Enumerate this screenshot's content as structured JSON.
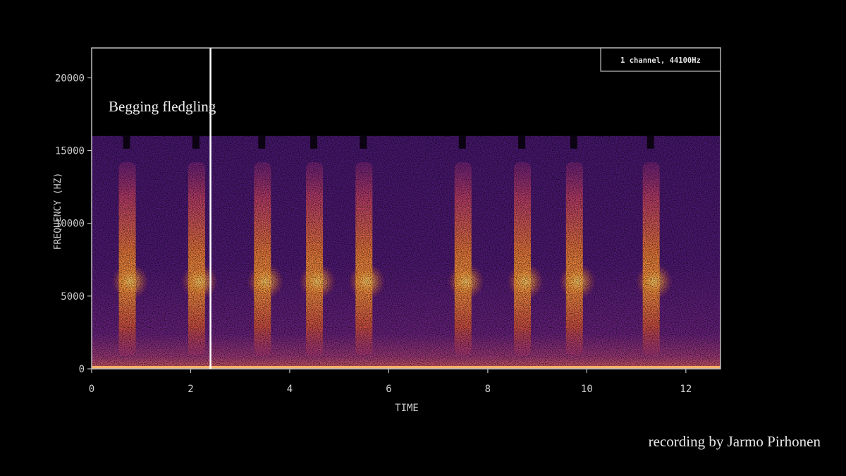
{
  "chart_data": {
    "type": "heatmap",
    "subtype": "spectrogram",
    "annotation": "Begging fledgling",
    "info_box": "1 channel, 44100Hz",
    "xlabel": "TIME",
    "ylabel": "FREQUENCY (HZ)",
    "xlim": [
      0,
      12.7
    ],
    "ylim": [
      0,
      22050
    ],
    "xticks": [
      0,
      2,
      4,
      6,
      8,
      10,
      12
    ],
    "yticks": [
      0,
      5000,
      10000,
      15000,
      20000
    ],
    "content_max_frequency": 16000,
    "cursor_time": 2.4,
    "colormap": [
      "#000000",
      "#3b0f70",
      "#8c2981",
      "#de4968",
      "#fe9f6d",
      "#fcfdbf"
    ],
    "calls": [
      {
        "time": 0.72,
        "peak_frequency": 6000
      },
      {
        "time": 2.12,
        "peak_frequency": 6000
      },
      {
        "time": 3.45,
        "peak_frequency": 6000
      },
      {
        "time": 4.5,
        "peak_frequency": 6000
      },
      {
        "time": 5.5,
        "peak_frequency": 6000
      },
      {
        "time": 7.5,
        "peak_frequency": 6000
      },
      {
        "time": 8.7,
        "peak_frequency": 6000
      },
      {
        "time": 9.75,
        "peak_frequency": 6000
      },
      {
        "time": 11.3,
        "peak_frequency": 6000
      }
    ],
    "grid": false
  },
  "credit": "recording by Jarmo Pirhonen"
}
